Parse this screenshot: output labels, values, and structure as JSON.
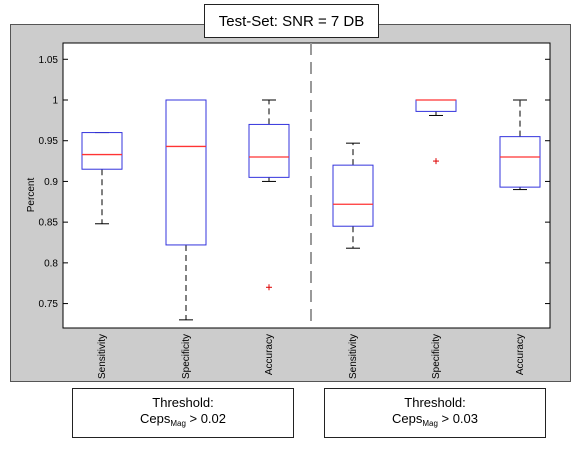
{
  "chart_data": {
    "type": "box",
    "title": "Test-Set: SNR = 7 DB",
    "xlabel": "",
    "ylabel": "Percent",
    "ylim": [
      0.72,
      1.07
    ],
    "yticks": [
      0.75,
      0.8,
      0.85,
      0.9,
      0.95,
      1,
      1.05
    ],
    "ytick_labels": [
      "0.75",
      "0.8",
      "0.85",
      "0.9",
      "0.95",
      "1",
      "1.05"
    ],
    "categories": [
      "Sensitivity",
      "Specificity",
      "Accuracy",
      "Sensitivity",
      "Specificity",
      "Accuracy"
    ],
    "boxes": [
      {
        "whisker_low": 0.848,
        "q1": 0.915,
        "median": 0.933,
        "q3": 0.96,
        "whisker_high": 0.96,
        "outliers": []
      },
      {
        "whisker_low": 0.73,
        "q1": 0.822,
        "median": 0.943,
        "q3": 1.0,
        "whisker_high": 1.0,
        "outliers": []
      },
      {
        "whisker_low": 0.9,
        "q1": 0.905,
        "median": 0.93,
        "q3": 0.97,
        "whisker_high": 1.0,
        "outliers": [
          0.77
        ]
      },
      {
        "whisker_low": 0.818,
        "q1": 0.845,
        "median": 0.872,
        "q3": 0.92,
        "whisker_high": 0.947,
        "outliers": []
      },
      {
        "whisker_low": 0.981,
        "q1": 0.986,
        "median": 1.0,
        "q3": 1.0,
        "whisker_high": 1.0,
        "outliers": [
          0.925
        ]
      },
      {
        "whisker_low": 0.89,
        "q1": 0.893,
        "median": 0.93,
        "q3": 0.955,
        "whisker_high": 1.0,
        "outliers": []
      }
    ],
    "group_separator_after": 3,
    "grid": false,
    "colors": {
      "box": "#3333dd",
      "median": "#ff3333",
      "whisker": "#000000",
      "outlier": "#dd0000",
      "separator": "#999999"
    }
  },
  "groups": [
    {
      "label": "Threshold:",
      "name_main": "Ceps",
      "name_sub": "Mag",
      "condition": " > 0.02"
    },
    {
      "label": "Threshold:",
      "name_main": "Ceps",
      "name_sub": "Mag",
      "condition": " > 0.03"
    }
  ]
}
